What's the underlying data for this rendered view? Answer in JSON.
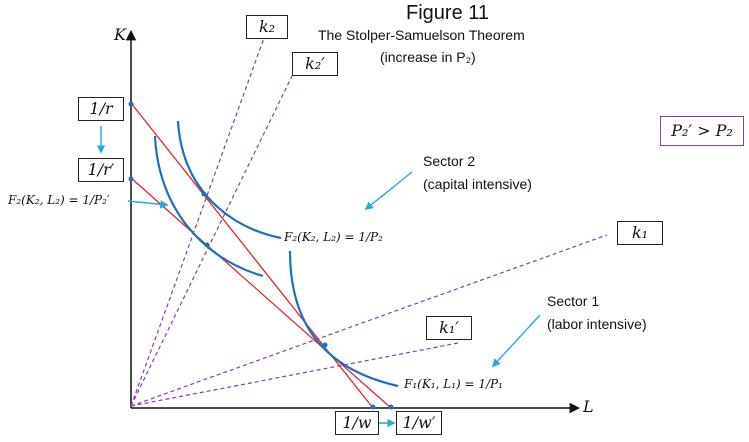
{
  "figure": {
    "heading": "Figure 11",
    "title": "The Stolper-Samuelson Theorem",
    "subtitle": "(increase in P₂)"
  },
  "axes": {
    "y_label": "K",
    "x_label": "L"
  },
  "rays": {
    "k2": "k₂",
    "k2_prime": "k₂′",
    "k1": "k₁",
    "k1_prime": "k₁′"
  },
  "intercepts": {
    "one_over_r": "1/r",
    "one_over_r_prime": "1/r′",
    "one_over_w": "1/w",
    "one_over_w_prime": "1/w′"
  },
  "price_condition": "P₂′ > P₂",
  "sectors": {
    "sector2_name": "Sector 2",
    "sector2_desc": "(capital intensive)",
    "sector1_name": "Sector 1",
    "sector1_desc": "(labor intensive)"
  },
  "isoquants": {
    "f2_new": "F₂(K₂, L₂) = 1/P₂′",
    "f2_old": "F₂(K₂, L₂) = 1/P₂",
    "f1": "F₁(K₁, L₁) = 1/P₁"
  },
  "colors": {
    "ray": "#8a3fa8",
    "isocost": "#e3262b",
    "isoquant": "#1f6fbf",
    "pointer": "#2aa8d8"
  }
}
